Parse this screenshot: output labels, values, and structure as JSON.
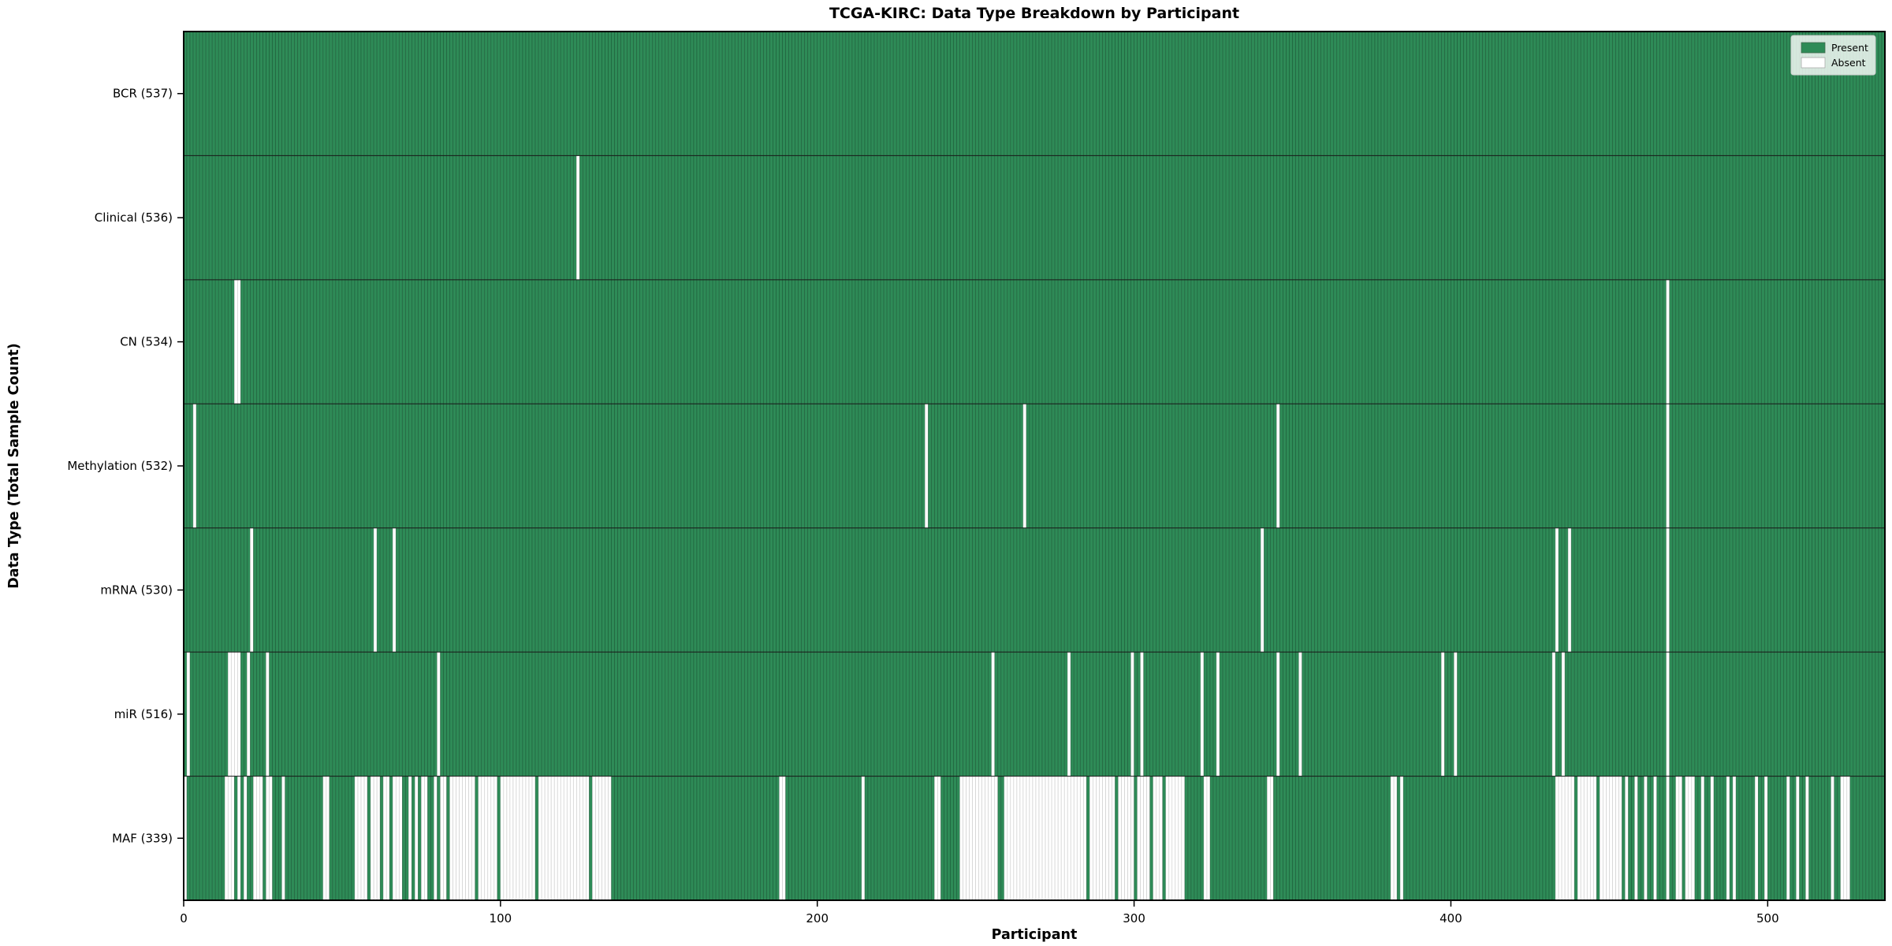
{
  "chart_data": {
    "type": "heatmap",
    "title": "TCGA-KIRC: Data Type Breakdown by Participant",
    "xlabel": "Participant",
    "ylabel": "Data Type (Total Sample Count)",
    "x_ticks": [
      0,
      100,
      200,
      300,
      400,
      500
    ],
    "x_range": [
      0,
      537
    ],
    "n_participants": 537,
    "grid": false,
    "colors": {
      "present": "#2e8b57",
      "absent": "#ffffff",
      "present_edge": "#123f26",
      "absent_edge": "#b8b8b8",
      "separator": "#1a1a1a",
      "spine": "#000000"
    },
    "legend": {
      "position": "upper right",
      "entries": [
        {
          "label": "Present",
          "color": "#2e8b57"
        },
        {
          "label": "Absent",
          "color": "#ffffff"
        }
      ]
    },
    "rows": [
      {
        "name": "BCR",
        "label": "BCR (537)",
        "total": 537,
        "absent": []
      },
      {
        "name": "Clinical",
        "label": "Clinical (536)",
        "total": 536,
        "absent": [
          124
        ]
      },
      {
        "name": "CN",
        "label": "CN (534)",
        "total": 534,
        "absent": [
          16,
          17,
          468
        ]
      },
      {
        "name": "Methylation",
        "label": "Methylation (532)",
        "total": 532,
        "absent": [
          3,
          234,
          265,
          345,
          468
        ]
      },
      {
        "name": "mRNA",
        "label": "mRNA (530)",
        "total": 530,
        "absent": [
          21,
          60,
          66,
          340,
          433,
          437,
          468
        ]
      },
      {
        "name": "miR",
        "label": "miR (516)",
        "total": 516,
        "absent": [
          1,
          14,
          15,
          16,
          17,
          20,
          26,
          80,
          255,
          279,
          299,
          302,
          321,
          326,
          345,
          352,
          397,
          401,
          432,
          435,
          468
        ]
      },
      {
        "name": "MAF",
        "label": "MAF (339)",
        "total": 339,
        "absent": [
          0,
          13,
          14,
          15,
          17,
          19,
          22,
          23,
          24,
          26,
          27,
          31,
          44,
          45,
          54,
          55,
          56,
          57,
          59,
          60,
          61,
          63,
          64,
          66,
          67,
          68,
          71,
          73,
          75,
          76,
          79,
          81,
          82,
          84,
          85,
          86,
          87,
          88,
          89,
          90,
          91,
          93,
          94,
          95,
          96,
          97,
          98,
          100,
          101,
          102,
          103,
          104,
          105,
          106,
          107,
          108,
          109,
          110,
          112,
          113,
          114,
          115,
          116,
          117,
          118,
          119,
          120,
          121,
          122,
          123,
          124,
          125,
          126,
          127,
          129,
          130,
          131,
          132,
          133,
          134,
          188,
          189,
          214,
          237,
          238,
          245,
          246,
          247,
          248,
          249,
          250,
          251,
          252,
          253,
          254,
          255,
          256,
          259,
          260,
          261,
          262,
          263,
          264,
          265,
          266,
          267,
          268,
          269,
          270,
          271,
          272,
          273,
          274,
          275,
          276,
          277,
          278,
          279,
          280,
          281,
          282,
          283,
          284,
          286,
          287,
          288,
          289,
          290,
          291,
          292,
          293,
          295,
          296,
          297,
          298,
          299,
          301,
          302,
          303,
          304,
          306,
          307,
          308,
          310,
          311,
          312,
          313,
          314,
          315,
          322,
          323,
          342,
          343,
          381,
          382,
          384,
          433,
          434,
          435,
          436,
          437,
          438,
          440,
          441,
          442,
          443,
          444,
          445,
          447,
          448,
          449,
          450,
          451,
          452,
          453,
          455,
          458,
          461,
          464,
          468,
          471,
          472,
          474,
          475,
          476,
          479,
          482,
          487,
          489,
          496,
          499,
          506,
          509,
          512,
          520,
          523,
          524,
          525
        ]
      }
    ]
  }
}
